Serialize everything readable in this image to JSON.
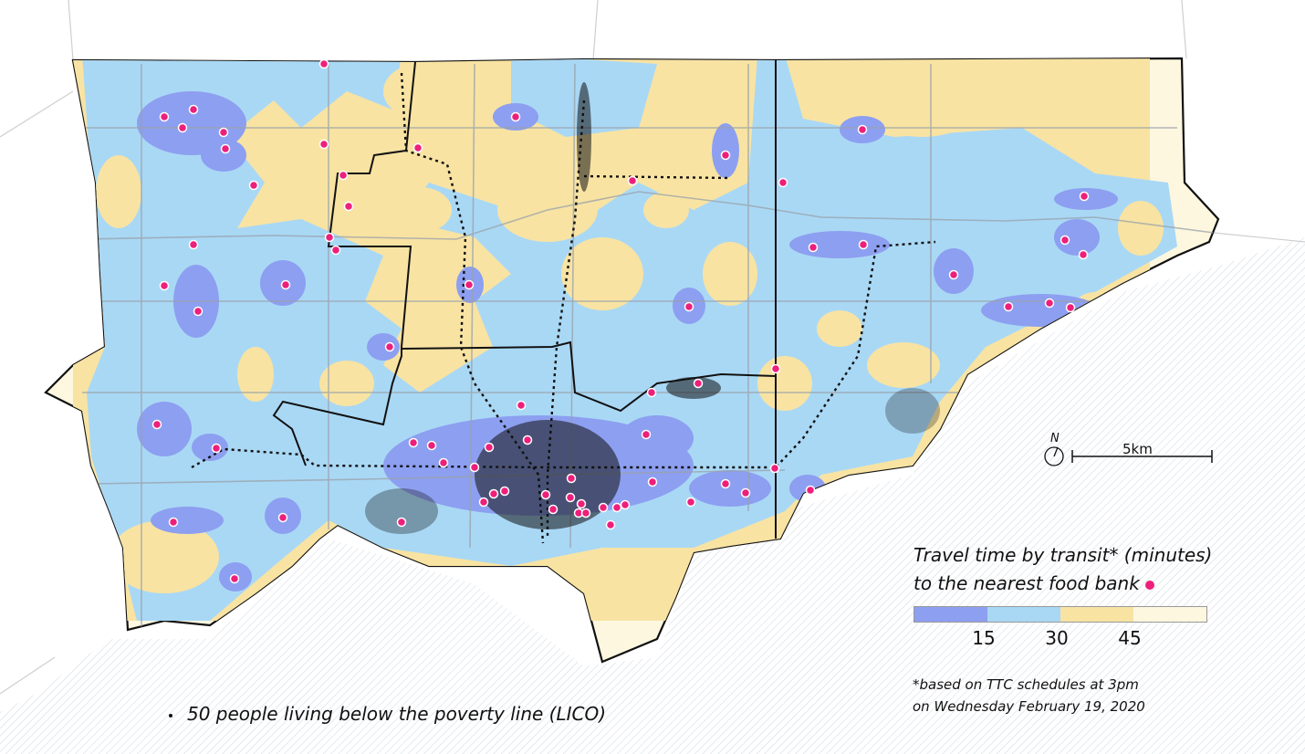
{
  "legend": {
    "title_line1": "Travel time by transit* (minutes)",
    "title_line2": "to the nearest food bank",
    "classes": [
      {
        "color": "#8d9ff0"
      },
      {
        "color": "#a9d8f5"
      },
      {
        "color": "#f8e3a3"
      },
      {
        "color": "#fdf7e0"
      }
    ],
    "ticks": [
      "15",
      "30",
      "45"
    ]
  },
  "footnote": {
    "line1": "*based on TTC schedules at 3pm",
    "line2": "on Wednesday February 19, 2020"
  },
  "dot_legend": "50 people living below the poverty line (LICO)",
  "scale": {
    "label": "5km"
  },
  "north": "N",
  "colors": {
    "food_bank": "#ee1f7a",
    "water_hatch": "#dde4ea",
    "boundary": "#111111"
  }
}
